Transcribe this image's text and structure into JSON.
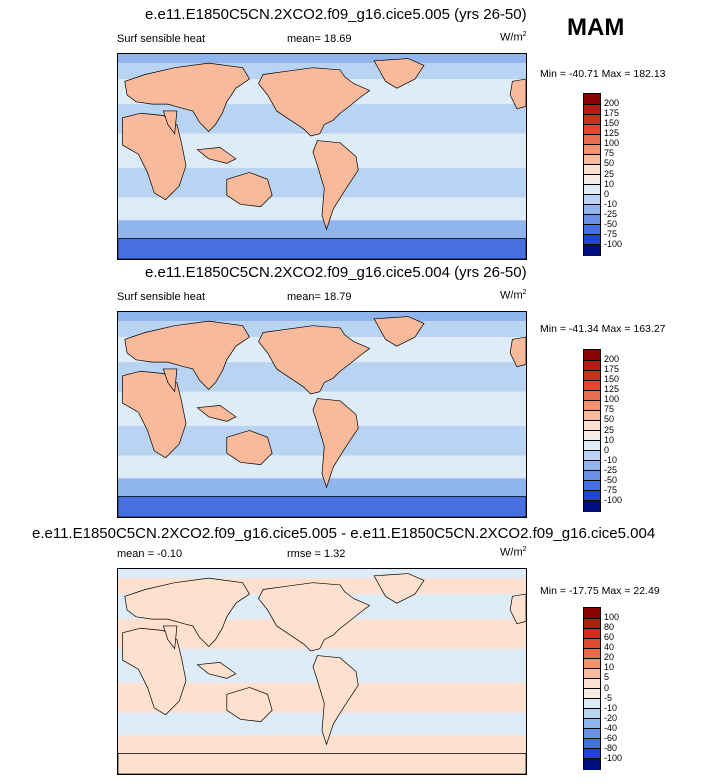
{
  "season": "MAM",
  "panels": [
    {
      "title": "e.e11.E1850C5CN.2XCO2.f09_g16.cice5.005 (yrs 26-50)",
      "left_label": "Surf sensible heat",
      "stat_label": "mean=",
      "stat_value": "18.69",
      "units": "W/m",
      "units_sup": "2",
      "minmax": "Min = -40.71 Max = 182.13",
      "levels": [
        "200",
        "175",
        "150",
        "125",
        "100",
        "75",
        "50",
        "25",
        "10",
        "0",
        "-10",
        "-25",
        "-50",
        "-75",
        "-100"
      ],
      "type": "abs",
      "field_mean": 18.69
    },
    {
      "title": "e.e11.E1850C5CN.2XCO2.f09_g16.cice5.004 (yrs 26-50)",
      "left_label": "Surf sensible heat",
      "stat_label": "mean=",
      "stat_value": "18.79",
      "units": "W/m",
      "units_sup": "2",
      "minmax": "Min = -41.34 Max = 163.27",
      "levels": [
        "200",
        "175",
        "150",
        "125",
        "100",
        "75",
        "50",
        "25",
        "10",
        "0",
        "-10",
        "-25",
        "-50",
        "-75",
        "-100"
      ],
      "type": "abs",
      "field_mean": 18.79
    },
    {
      "title": "e.e11.E1850C5CN.2XCO2.f09_g16.cice5.005 - e.e11.E1850C5CN.2XCO2.f09_g16.cice5.004",
      "left_label": "mean =  -0.10",
      "stat_label": "rmse =",
      "stat_value": "1.32",
      "units": "W/m",
      "units_sup": "2",
      "minmax": "Min = -17.75 Max = 22.49",
      "levels": [
        "100",
        "80",
        "60",
        "40",
        "20",
        "10",
        "5",
        "0",
        "-5",
        "-10",
        "-20",
        "-40",
        "-60",
        "-80",
        "-100"
      ],
      "type": "diff",
      "field_mean": -0.1
    }
  ],
  "colors": {
    "scale": [
      "#8b0000",
      "#b01d10",
      "#cc2f1c",
      "#dd4a30",
      "#ea6b4e",
      "#f4916f",
      "#f9b99b",
      "#fde0cd",
      "#f7ece4",
      "#deecf8",
      "#b9d4f3",
      "#8fb5ec",
      "#6a93e8",
      "#4670e2",
      "#2244d6",
      "#000e80"
    ],
    "land_outline": "#000000"
  },
  "chart_data": [
    {
      "type": "heatmap",
      "title": "e.e11.E1850C5CN.2XCO2.f09_g16.cice5.005 (yrs 26-50)",
      "variable": "Surf sensible heat",
      "units": "W/m2",
      "season": "MAM",
      "mean": 18.69,
      "min": -40.71,
      "max": 182.13,
      "levels": [
        -100,
        -75,
        -50,
        -25,
        -10,
        0,
        10,
        25,
        50,
        75,
        100,
        125,
        150,
        175,
        200
      ]
    },
    {
      "type": "heatmap",
      "title": "e.e11.E1850C5CN.2XCO2.f09_g16.cice5.004 (yrs 26-50)",
      "variable": "Surf sensible heat",
      "units": "W/m2",
      "season": "MAM",
      "mean": 18.79,
      "min": -41.34,
      "max": 163.27,
      "levels": [
        -100,
        -75,
        -50,
        -25,
        -10,
        0,
        10,
        25,
        50,
        75,
        100,
        125,
        150,
        175,
        200
      ]
    },
    {
      "type": "heatmap",
      "title": "e.e11.E1850C5CN.2XCO2.f09_g16.cice5.005 - e.e11.E1850C5CN.2XCO2.f09_g16.cice5.004",
      "units": "W/m2",
      "mean": -0.1,
      "rmse": 1.32,
      "min": -17.75,
      "max": 22.49,
      "levels": [
        -100,
        -80,
        -60,
        -40,
        -20,
        -10,
        -5,
        0,
        5,
        10,
        20,
        40,
        60,
        80,
        100
      ]
    }
  ]
}
